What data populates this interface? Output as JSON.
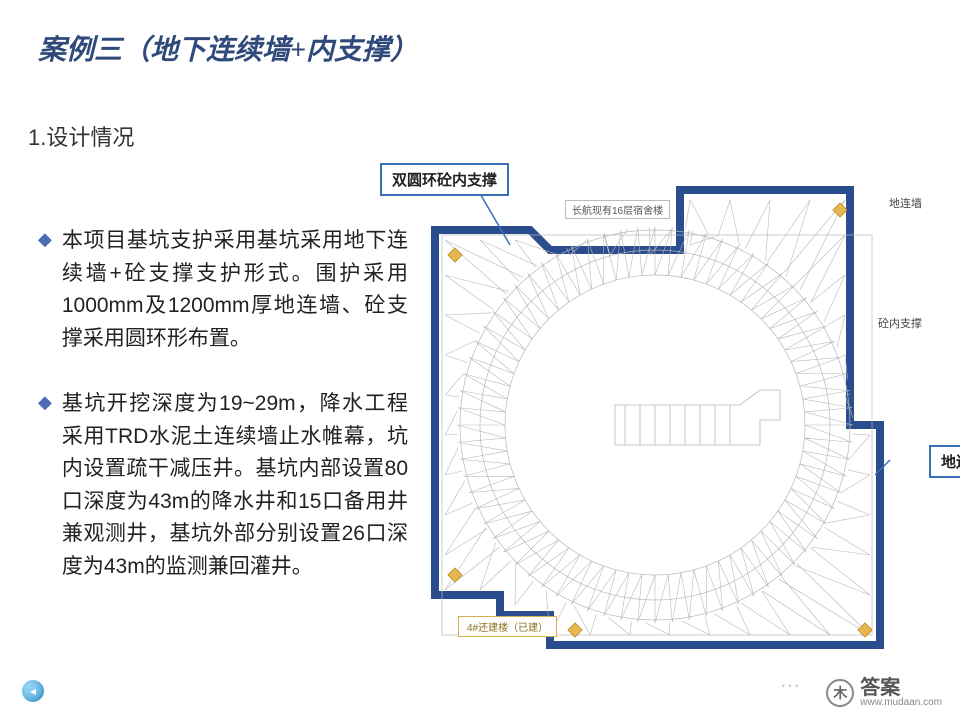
{
  "title": "案例三（地下连续墙+内支撑）",
  "section_heading": "1.设计情况",
  "bullets": [
    "本项目基坑支护采用基坑采用地下连续墙+砼支撑支护形式。围护采用1000mm及1200mm厚地连墙、砼支撑采用圆环形布置。",
    "基坑开挖深度为19~29m，降水工程采用TRD水泥土连续墙止水帷幕，坑内设置疏干减压井。基坑内部设置80口深度为43m的降水井和15口备用井兼观测井，基坑外部分别设置26口深度为43m的监测兼回灌井。"
  ],
  "callouts": {
    "top": "双圆环砼内支撑",
    "right": "地连墙"
  },
  "side_labels": {
    "l1": "地连墙",
    "l2": "砼内支撑"
  },
  "inner_box": "长航现有16层宿舍楼",
  "bottom_box": "4#还建楼（已建）",
  "diagram": {
    "outline_color": "#2a4d8f",
    "outline_width": 6,
    "grid_color": "#b8b8b8",
    "accent_color": "#d4a030",
    "bg": "#ffffff"
  },
  "footer": {
    "site_name": "答案",
    "site_url": "www.mudaan.com",
    "logo_char": "木"
  }
}
